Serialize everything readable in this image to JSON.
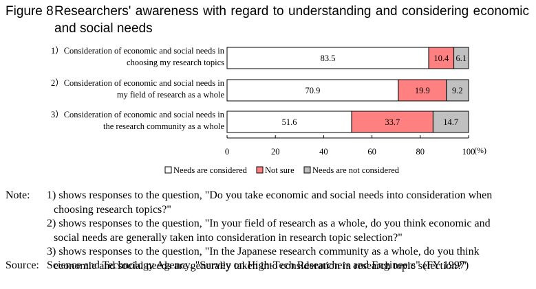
{
  "figure": {
    "label": "Figure 8",
    "title": "Researchers' awareness with regard to understanding and considering economic and social needs"
  },
  "chart_data": {
    "type": "bar",
    "orientation": "horizontal",
    "stacked": true,
    "categories": [
      [
        "1）Consideration of economic and social needs in",
        "choosing my research topics"
      ],
      [
        "2）Consideration of economic and social needs in",
        "my field of research as a whole"
      ],
      [
        "3）Consideration of economic and social needs in",
        "the research community as a whole"
      ]
    ],
    "series": [
      {
        "name": "Needs are considered",
        "values": [
          83.5,
          70.9,
          51.6
        ],
        "color": "#ffffff"
      },
      {
        "name": "Not sure",
        "values": [
          10.4,
          19.9,
          33.7
        ],
        "color": "#ff8080"
      },
      {
        "name": "Needs are not considered",
        "values": [
          6.1,
          9.2,
          14.7
        ],
        "color": "#c0c0c0"
      }
    ],
    "xlim": [
      0,
      100
    ],
    "xticks": [
      "0",
      "20",
      "40",
      "60",
      "80",
      "100"
    ],
    "xunit": "(%)",
    "grid": false,
    "legend": "bottom"
  },
  "notes": {
    "label": "Note:",
    "lines": [
      "1) shows responses to the question, \"Do you take economic and social needs into consideration when",
      "choosing research topics?\"",
      "2) shows responses to the question, \"In your field of research as a whole, do you think economic and",
      "social needs are generally taken into consideration in research topic selection?\"",
      "3) shows responses to the question, \"In the Japanese research community as a whole, do you think",
      "economic and social needs are generally taken into consideration in research topic selection?\""
    ]
  },
  "source": {
    "label": "Source:",
    "text": "Science and Technology Agency. \"Survey on High-Tech Researchers and Engineers\" (FY 1997)"
  }
}
